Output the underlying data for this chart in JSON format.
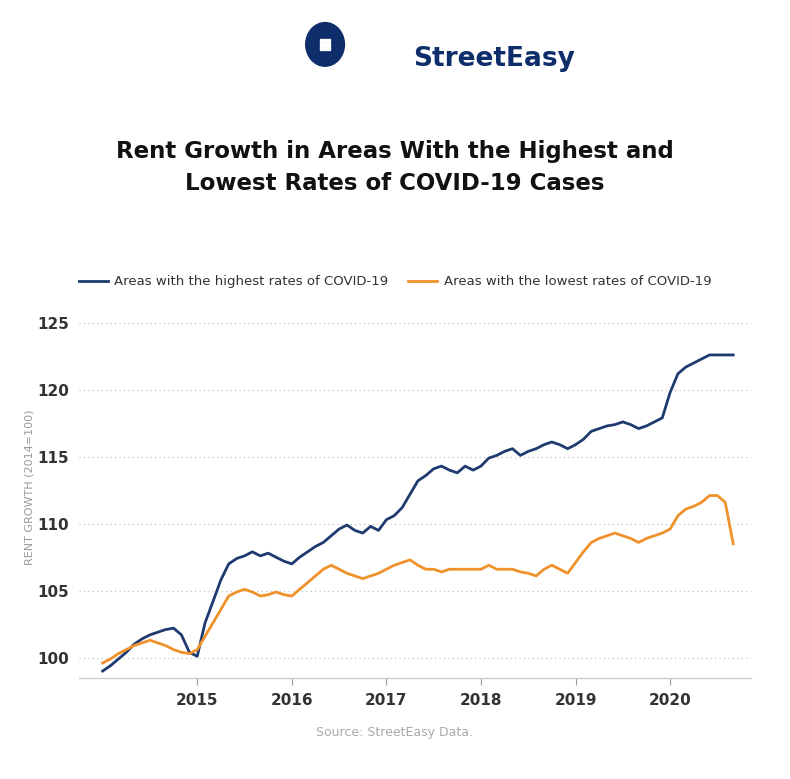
{
  "title_line1": "Rent Growth in Areas With the Highest and",
  "title_line2": "Lowest Rates of COVID-19 Cases",
  "ylabel": "RENT GROWTH (2014=100)",
  "source": "Source: StreetEasy Data.",
  "legend_high": "Areas with the highest rates of COVID-19",
  "legend_low": "Areas with the lowest rates of COVID-19",
  "color_high": "#1e3a6e",
  "color_low": "#f0922b",
  "background": "#ffffff",
  "ylim": [
    98.5,
    127
  ],
  "yticks": [
    100,
    105,
    110,
    115,
    120,
    125
  ],
  "logo_color": "#0d2d6b",
  "title_color": "#111111",
  "tick_color": "#333333",
  "grid_color": "#bbbbbb",
  "source_color": "#aaaaaa",
  "blue_x": [
    2014.0,
    2014.083,
    2014.167,
    2014.25,
    2014.333,
    2014.417,
    2014.5,
    2014.583,
    2014.667,
    2014.75,
    2014.833,
    2014.917,
    2015.0,
    2015.083,
    2015.167,
    2015.25,
    2015.333,
    2015.417,
    2015.5,
    2015.583,
    2015.667,
    2015.75,
    2015.833,
    2015.917,
    2016.0,
    2016.083,
    2016.167,
    2016.25,
    2016.333,
    2016.417,
    2016.5,
    2016.583,
    2016.667,
    2016.75,
    2016.833,
    2016.917,
    2017.0,
    2017.083,
    2017.167,
    2017.25,
    2017.333,
    2017.417,
    2017.5,
    2017.583,
    2017.667,
    2017.75,
    2017.833,
    2017.917,
    2018.0,
    2018.083,
    2018.167,
    2018.25,
    2018.333,
    2018.417,
    2018.5,
    2018.583,
    2018.667,
    2018.75,
    2018.833,
    2018.917,
    2019.0,
    2019.083,
    2019.167,
    2019.25,
    2019.333,
    2019.417,
    2019.5,
    2019.583,
    2019.667,
    2019.75,
    2019.833,
    2019.917,
    2020.0,
    2020.083,
    2020.167,
    2020.25,
    2020.333,
    2020.417,
    2020.5,
    2020.583,
    2020.667
  ],
  "blue_y": [
    99.0,
    99.4,
    99.9,
    100.4,
    101.0,
    101.4,
    101.7,
    101.9,
    102.1,
    102.2,
    101.7,
    100.4,
    100.1,
    102.6,
    104.2,
    105.8,
    107.0,
    107.4,
    107.6,
    107.9,
    107.6,
    107.8,
    107.5,
    107.2,
    107.0,
    107.5,
    107.9,
    108.3,
    108.6,
    109.1,
    109.6,
    109.9,
    109.5,
    109.3,
    109.8,
    109.5,
    110.3,
    110.6,
    111.2,
    112.2,
    113.2,
    113.6,
    114.1,
    114.3,
    114.0,
    113.8,
    114.3,
    114.0,
    114.3,
    114.9,
    115.1,
    115.4,
    115.6,
    115.1,
    115.4,
    115.6,
    115.9,
    116.1,
    115.9,
    115.6,
    115.9,
    116.3,
    116.9,
    117.1,
    117.3,
    117.4,
    117.6,
    117.4,
    117.1,
    117.3,
    117.6,
    117.9,
    119.8,
    121.2,
    121.7,
    122.0,
    122.3,
    122.6,
    122.6,
    122.6,
    122.6
  ],
  "orange_x": [
    2014.0,
    2014.083,
    2014.167,
    2014.25,
    2014.333,
    2014.417,
    2014.5,
    2014.583,
    2014.667,
    2014.75,
    2014.833,
    2014.917,
    2015.0,
    2015.083,
    2015.167,
    2015.25,
    2015.333,
    2015.417,
    2015.5,
    2015.583,
    2015.667,
    2015.75,
    2015.833,
    2015.917,
    2016.0,
    2016.083,
    2016.167,
    2016.25,
    2016.333,
    2016.417,
    2016.5,
    2016.583,
    2016.667,
    2016.75,
    2016.833,
    2016.917,
    2017.0,
    2017.083,
    2017.167,
    2017.25,
    2017.333,
    2017.417,
    2017.5,
    2017.583,
    2017.667,
    2017.75,
    2017.833,
    2017.917,
    2018.0,
    2018.083,
    2018.167,
    2018.25,
    2018.333,
    2018.417,
    2018.5,
    2018.583,
    2018.667,
    2018.75,
    2018.833,
    2018.917,
    2019.0,
    2019.083,
    2019.167,
    2019.25,
    2019.333,
    2019.417,
    2019.5,
    2019.583,
    2019.667,
    2019.75,
    2019.833,
    2019.917,
    2020.0,
    2020.083,
    2020.167,
    2020.25,
    2020.333,
    2020.417,
    2020.5,
    2020.583,
    2020.667
  ],
  "orange_y": [
    99.6,
    99.9,
    100.3,
    100.6,
    100.9,
    101.1,
    101.3,
    101.1,
    100.9,
    100.6,
    100.4,
    100.3,
    100.6,
    101.6,
    102.6,
    103.6,
    104.6,
    104.9,
    105.1,
    104.9,
    104.6,
    104.7,
    104.9,
    104.7,
    104.6,
    105.1,
    105.6,
    106.1,
    106.6,
    106.9,
    106.6,
    106.3,
    106.1,
    105.9,
    106.1,
    106.3,
    106.6,
    106.9,
    107.1,
    107.3,
    106.9,
    106.6,
    106.6,
    106.4,
    106.6,
    106.6,
    106.6,
    106.6,
    106.6,
    106.9,
    106.6,
    106.6,
    106.6,
    106.4,
    106.3,
    106.1,
    106.6,
    106.9,
    106.6,
    106.3,
    107.1,
    107.9,
    108.6,
    108.9,
    109.1,
    109.3,
    109.1,
    108.9,
    108.6,
    108.9,
    109.1,
    109.3,
    109.6,
    110.6,
    111.1,
    111.3,
    111.6,
    112.1,
    112.1,
    111.6,
    108.5
  ],
  "xtick_positions": [
    2015.0,
    2016.0,
    2017.0,
    2018.0,
    2019.0,
    2020.0
  ],
  "xtick_labels": [
    "2015",
    "2016",
    "2017",
    "2018",
    "2019",
    "2020"
  ],
  "xlim_left": 2013.75,
  "xlim_right": 2020.85
}
